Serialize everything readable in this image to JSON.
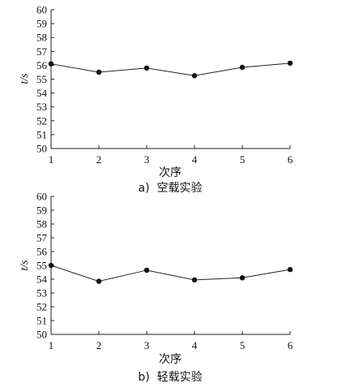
{
  "chart_data": [
    {
      "type": "line",
      "x": [
        1,
        2,
        3,
        4,
        5,
        6
      ],
      "y": [
        56.1,
        55.5,
        55.8,
        55.25,
        55.85,
        56.15
      ],
      "xlabel": "次序",
      "ylabel": "t/s",
      "caption": "a)  空载实验",
      "xlim": [
        1,
        6
      ],
      "ylim": [
        50,
        60
      ],
      "xticks": [
        "1",
        "2",
        "3",
        "4",
        "5",
        "6"
      ],
      "yticks": [
        "50",
        "51",
        "52",
        "53",
        "54",
        "55",
        "56",
        "57",
        "58",
        "59",
        "60"
      ],
      "grid": false,
      "line_color": "#222222"
    },
    {
      "type": "line",
      "x": [
        1,
        2,
        3,
        4,
        5,
        6
      ],
      "y": [
        55.0,
        53.85,
        54.65,
        53.95,
        54.1,
        54.7
      ],
      "xlabel": "次序",
      "ylabel": "t/s",
      "caption": "b)  轻载实验",
      "xlim": [
        1,
        6
      ],
      "ylim": [
        50,
        60
      ],
      "xticks": [
        "1",
        "2",
        "3",
        "4",
        "5",
        "6"
      ],
      "yticks": [
        "50",
        "51",
        "52",
        "53",
        "54",
        "55",
        "56",
        "57",
        "58",
        "59",
        "60"
      ],
      "grid": false,
      "line_color": "#222222"
    }
  ]
}
